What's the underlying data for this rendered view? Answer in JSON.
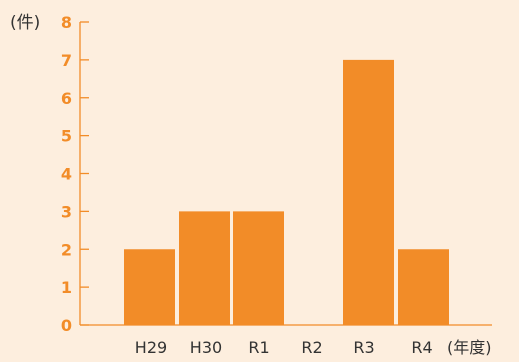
{
  "chart_data": {
    "type": "bar",
    "categories": [
      "H29",
      "H30",
      "R1",
      "R2",
      "R3",
      "R4"
    ],
    "values": [
      2,
      3,
      3,
      0,
      7,
      2
    ],
    "ylabel": "(件)",
    "xlabel": "(年度)",
    "ylim": [
      0,
      8
    ],
    "yticks": [
      "0",
      "1",
      "2",
      "3",
      "4",
      "5",
      "6",
      "7",
      "8"
    ],
    "grid": false,
    "colors": {
      "bar": "#f28c28",
      "tick_label": "#f28c28",
      "axis": "#f28c28",
      "background": "#fdeede"
    }
  }
}
